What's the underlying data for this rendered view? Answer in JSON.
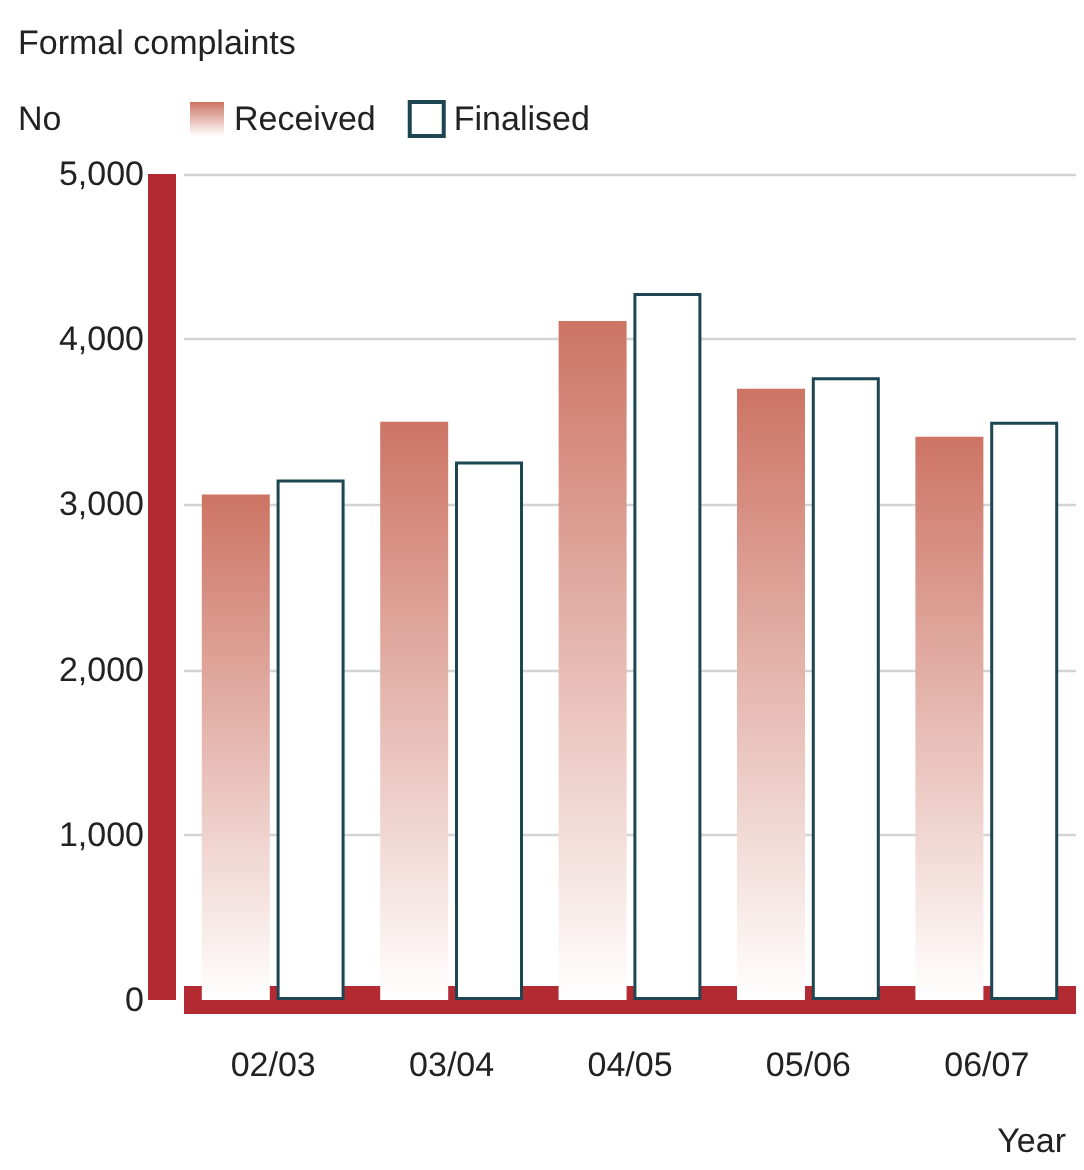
{
  "chart_data": {
    "type": "bar",
    "title": "Formal complaints",
    "ylabel": "No",
    "xlabel": "Year",
    "categories": [
      "02/03",
      "03/04",
      "04/05",
      "05/06",
      "06/07"
    ],
    "series": [
      {
        "name": "Received",
        "color": "#cd7464",
        "values": [
          3060,
          3500,
          4110,
          3700,
          3410
        ]
      },
      {
        "name": "Finalised",
        "color": "#ffffff",
        "values": [
          3150,
          3260,
          4280,
          3770,
          3500
        ]
      }
    ],
    "ylim": [
      0,
      5000
    ],
    "yticks": [
      0,
      {
        "value": 1000,
        "label": "1,000"
      },
      {
        "value": 2000,
        "label": "2,000"
      },
      {
        "value": 3000,
        "label": "3,000"
      },
      {
        "value": 4000,
        "label": "4,000"
      },
      {
        "value": 5000,
        "label": "5,000"
      }
    ],
    "grid": "y",
    "legend": "top left"
  }
}
